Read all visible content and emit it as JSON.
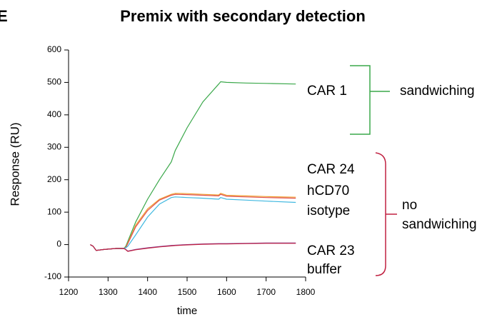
{
  "chart_data": {
    "type": "line",
    "panel_label": "E",
    "title": "Premix with secondary detection",
    "y_label": "Response (RU)",
    "x_label": "time",
    "x": [
      1255,
      1262,
      1270,
      1290,
      1320,
      1340,
      1345,
      1350,
      1370,
      1400,
      1430,
      1460,
      1470,
      1500,
      1540,
      1580,
      1585,
      1600,
      1650,
      1700,
      1775
    ],
    "series": [
      {
        "name": "CAR 1",
        "color": "#3aa84a",
        "values": [
          0,
          -5,
          -18,
          -15,
          -12,
          -12,
          -5,
          10,
          70,
          140,
          200,
          255,
          290,
          360,
          440,
          495,
          502,
          500,
          498,
          497,
          495
        ]
      },
      {
        "name": "CAR 24",
        "color": "#f0a030",
        "values": [
          0,
          -5,
          -18,
          -15,
          -12,
          -12,
          -8,
          5,
          60,
          110,
          140,
          155,
          158,
          157,
          155,
          153,
          158,
          152,
          150,
          148,
          146
        ]
      },
      {
        "name": "hCD70",
        "color": "#e05050",
        "values": [
          0,
          -5,
          -18,
          -15,
          -12,
          -12,
          -9,
          3,
          55,
          105,
          137,
          152,
          155,
          154,
          152,
          150,
          155,
          149,
          147,
          145,
          143
        ]
      },
      {
        "name": "isotype",
        "color": "#40b8e0",
        "values": [
          0,
          -5,
          -18,
          -15,
          -12,
          -12,
          -10,
          -5,
          30,
          85,
          125,
          145,
          147,
          145,
          143,
          140,
          145,
          140,
          137,
          134,
          130
        ]
      },
      {
        "name": "CAR 23",
        "color": "#7a3a9a",
        "values": [
          0,
          -5,
          -18,
          -15,
          -12,
          -12,
          -15,
          -20,
          -15,
          -10,
          -6,
          -3,
          -2,
          0,
          2,
          3,
          3,
          3,
          4,
          5,
          5
        ]
      },
      {
        "name": "buffer",
        "color": "#c02040",
        "values": [
          0,
          -5,
          -18,
          -15,
          -12,
          -12,
          -16,
          -21,
          -16,
          -11,
          -7,
          -4,
          -3,
          -1,
          1,
          2,
          2,
          2,
          3,
          4,
          4
        ]
      }
    ],
    "annotations": [
      "sandwiching",
      "no",
      "sandwiching"
    ],
    "xlim": [
      1200,
      1800
    ],
    "xticks": [
      1200,
      1300,
      1400,
      1500,
      1600,
      1700,
      1800
    ],
    "ylim": [
      -100,
      600
    ],
    "yticks": [
      -100,
      0,
      100,
      200,
      300,
      400,
      500,
      600
    ],
    "grid": false
  }
}
